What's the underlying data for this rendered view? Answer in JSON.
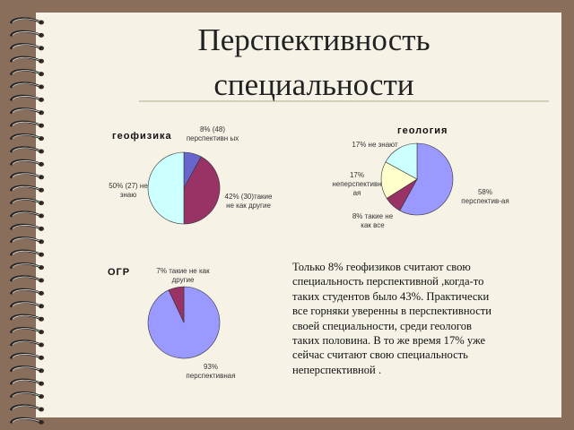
{
  "title": "Перспективность специальности",
  "chart_data": [
    {
      "type": "pie",
      "title": "геофизика",
      "values": [
        8,
        42,
        50
      ],
      "value_labels": [
        "8% (48) перспективн ых",
        "42% (30)такие не как другие",
        "50% (27) не знаю"
      ],
      "colors": [
        "#6666cc",
        "#993366",
        "#ccffff"
      ]
    },
    {
      "type": "pie",
      "title": "геология",
      "values": [
        58,
        8,
        17,
        17
      ],
      "value_labels": [
        "58% перспектив-ая",
        "8% такие не как все",
        "17% неперспективн ая",
        "17% не знают"
      ],
      "colors": [
        "#9999ff",
        "#993366",
        "#ffffcc",
        "#ccffff"
      ]
    },
    {
      "type": "pie",
      "title": "ОГР",
      "values": [
        93,
        7
      ],
      "value_labels": [
        "93% перспективная",
        "7% такие не как другие"
      ],
      "colors": [
        "#9999ff",
        "#993366"
      ]
    }
  ],
  "text": [
    "Только 8% геофизиков считают свою",
    "специальность перспективной ,когда-то",
    "таких студентов  было 43%. Практически",
    "все горняки уверенны в перспективности",
    "своей специальности, среди геологов",
    "таких половина. В то же время 17%  уже",
    "сейчас считают свою специальность",
    "неперспективной ."
  ]
}
